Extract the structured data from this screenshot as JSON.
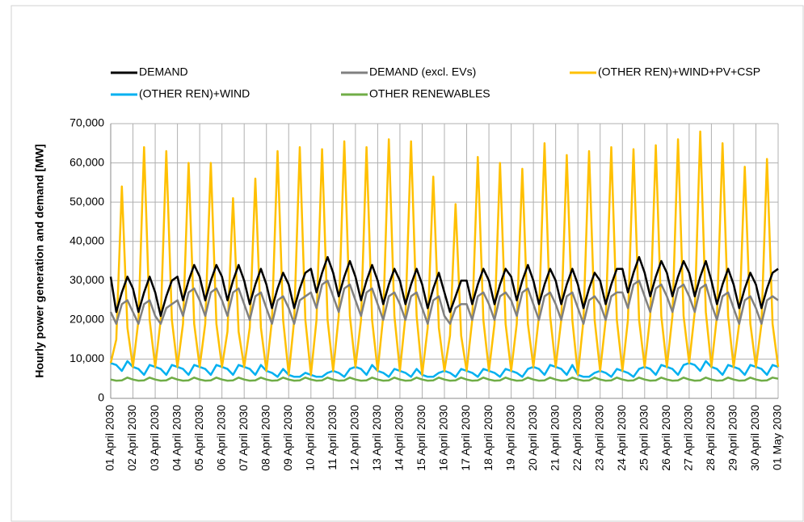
{
  "chart_data": {
    "type": "line",
    "y_label": "Hourly power generation and demand [MW]",
    "xlim": [
      0,
      30
    ],
    "xticks": [
      {
        "value": 0,
        "label": "01 April 2030"
      },
      {
        "value": 1,
        "label": "02 April 2030"
      },
      {
        "value": 2,
        "label": "03 April 2030"
      },
      {
        "value": 3,
        "label": "04 April 2030"
      },
      {
        "value": 4,
        "label": "05 April 2030"
      },
      {
        "value": 5,
        "label": "06 April 2030"
      },
      {
        "value": 6,
        "label": "07 April 2030"
      },
      {
        "value": 7,
        "label": "08 April 2030"
      },
      {
        "value": 8,
        "label": "09 April 2030"
      },
      {
        "value": 9,
        "label": "10 April 2030"
      },
      {
        "value": 10,
        "label": "11 April 2030"
      },
      {
        "value": 11,
        "label": "12 April 2030"
      },
      {
        "value": 12,
        "label": "13 April 2030"
      },
      {
        "value": 13,
        "label": "14 April 2030"
      },
      {
        "value": 14,
        "label": "15 April 2030"
      },
      {
        "value": 15,
        "label": "16 April 2030"
      },
      {
        "value": 16,
        "label": "17 April 2030"
      },
      {
        "value": 17,
        "label": "18 April 2030"
      },
      {
        "value": 18,
        "label": "19 April 2030"
      },
      {
        "value": 19,
        "label": "20 April 2030"
      },
      {
        "value": 20,
        "label": "21 April 2030"
      },
      {
        "value": 21,
        "label": "22 April 2030"
      },
      {
        "value": 22,
        "label": "23 April 2030"
      },
      {
        "value": 23,
        "label": "24 April 2030"
      },
      {
        "value": 24,
        "label": "25 April 2030"
      },
      {
        "value": 25,
        "label": "26 April 2030"
      },
      {
        "value": 26,
        "label": "27 April 2030"
      },
      {
        "value": 27,
        "label": "28 April 2030"
      },
      {
        "value": 28,
        "label": "29 April 2030"
      },
      {
        "value": 29,
        "label": "30 April 2030"
      },
      {
        "value": 30,
        "label": "01 May 2030"
      }
    ],
    "ylim": [
      0,
      70000
    ],
    "yticks": [
      0,
      {
        "value": 10000,
        "label": "10,000"
      },
      {
        "value": 20000,
        "label": "20,000"
      },
      {
        "value": 30000,
        "label": "30,000"
      },
      {
        "value": 40000,
        "label": "40,000"
      },
      {
        "value": 50000,
        "label": "50,000"
      },
      {
        "value": 60000,
        "label": "60,000"
      },
      {
        "value": 70000,
        "label": "70,000"
      }
    ],
    "grid": true,
    "x": [
      0,
      0.25,
      0.5,
      0.75,
      1,
      1.25,
      1.5,
      1.75,
      2,
      2.25,
      2.5,
      2.75,
      3,
      3.25,
      3.5,
      3.75,
      4,
      4.25,
      4.5,
      4.75,
      5,
      5.25,
      5.5,
      5.75,
      6,
      6.25,
      6.5,
      6.75,
      7,
      7.25,
      7.5,
      7.75,
      8,
      8.25,
      8.5,
      8.75,
      9,
      9.25,
      9.5,
      9.75,
      10,
      10.25,
      10.5,
      10.75,
      11,
      11.25,
      11.5,
      11.75,
      12,
      12.25,
      12.5,
      12.75,
      13,
      13.25,
      13.5,
      13.75,
      14,
      14.25,
      14.5,
      14.75,
      15,
      15.25,
      15.5,
      15.75,
      16,
      16.25,
      16.5,
      16.75,
      17,
      17.25,
      17.5,
      17.75,
      18,
      18.25,
      18.5,
      18.75,
      19,
      19.25,
      19.5,
      19.75,
      20,
      20.25,
      20.5,
      20.75,
      21,
      21.25,
      21.5,
      21.75,
      22,
      22.25,
      22.5,
      22.75,
      23,
      23.25,
      23.5,
      23.75,
      24,
      24.25,
      24.5,
      24.75,
      25,
      25.25,
      25.5,
      25.75,
      26,
      26.25,
      26.5,
      26.75,
      27,
      27.25,
      27.5,
      27.75,
      28,
      28.25,
      28.5,
      28.75,
      29,
      29.25,
      29.5,
      29.75,
      30
    ],
    "series": [
      {
        "name": "DEMAND",
        "color": "#000000",
        "values": [
          31000,
          22000,
          27000,
          31000,
          28000,
          22000,
          27000,
          31000,
          27000,
          21000,
          26000,
          30000,
          31000,
          25000,
          30000,
          34000,
          31000,
          25000,
          30000,
          34000,
          31000,
          25000,
          30000,
          34000,
          30000,
          24000,
          29000,
          33000,
          29000,
          23000,
          28000,
          32000,
          29000,
          23000,
          28000,
          32000,
          33000,
          27000,
          32000,
          36000,
          32000,
          26000,
          31000,
          35000,
          31000,
          25000,
          30000,
          34000,
          30000,
          24000,
          29000,
          33000,
          30000,
          24000,
          29000,
          33000,
          29000,
          23000,
          28000,
          32000,
          27000,
          22000,
          26000,
          30000,
          30000,
          24000,
          29000,
          33000,
          30000,
          24000,
          29000,
          33000,
          31000,
          25000,
          30000,
          34000,
          30000,
          24000,
          29000,
          33000,
          30000,
          24000,
          29000,
          33000,
          29000,
          23000,
          28000,
          32000,
          30000,
          24000,
          29000,
          33000,
          33000,
          27000,
          32000,
          36000,
          32000,
          26000,
          31000,
          35000,
          32000,
          26000,
          31000,
          35000,
          32000,
          26000,
          31000,
          35000,
          30000,
          24000,
          29000,
          33000,
          29000,
          23000,
          28000,
          32000,
          29000,
          23000,
          28000,
          32000,
          33000
        ]
      },
      {
        "name": "DEMAND (excl. EVs)",
        "color": "#808080",
        "values": [
          22000,
          19000,
          24000,
          25000,
          22000,
          19000,
          24000,
          25000,
          21000,
          19000,
          23000,
          24000,
          25000,
          21000,
          27000,
          28000,
          25000,
          21000,
          27000,
          28000,
          25000,
          21000,
          27000,
          28000,
          24000,
          20000,
          26000,
          27000,
          23000,
          19000,
          25000,
          26000,
          23000,
          19000,
          25000,
          26000,
          27000,
          23000,
          29000,
          30000,
          26000,
          22000,
          28000,
          29000,
          25000,
          21000,
          27000,
          28000,
          24000,
          20000,
          26000,
          27000,
          24000,
          20000,
          26000,
          27000,
          23000,
          19000,
          25000,
          26000,
          21000,
          19000,
          23000,
          24000,
          24000,
          20000,
          26000,
          27000,
          24000,
          20000,
          26000,
          27000,
          25000,
          21000,
          27000,
          28000,
          24000,
          20000,
          26000,
          27000,
          24000,
          20000,
          26000,
          27000,
          23000,
          19000,
          25000,
          26000,
          24000,
          20000,
          26000,
          27000,
          27000,
          23000,
          29000,
          30000,
          26000,
          22000,
          28000,
          29000,
          26000,
          22000,
          28000,
          29000,
          26000,
          22000,
          28000,
          29000,
          24000,
          20000,
          26000,
          27000,
          23000,
          19000,
          25000,
          26000,
          23000,
          19000,
          25000,
          26000,
          25000
        ]
      },
      {
        "name": "(OTHER REN)+WIND+PV+CSP",
        "color": "#ffc000",
        "values": [
          9000,
          15000,
          54000,
          18000,
          8000,
          20000,
          64000,
          20000,
          8000,
          20000,
          63000,
          20000,
          8000,
          19000,
          60000,
          19000,
          8000,
          19000,
          60000,
          19000,
          8000,
          17000,
          51000,
          17000,
          8000,
          18000,
          56000,
          18000,
          7000,
          20000,
          63000,
          20000,
          6000,
          20000,
          64000,
          20000,
          6000,
          20000,
          63500,
          20000,
          7000,
          21000,
          65500,
          21000,
          8000,
          20000,
          64000,
          20000,
          7000,
          21000,
          66000,
          21000,
          7000,
          21000,
          65500,
          21000,
          6000,
          18000,
          56500,
          18000,
          7000,
          16000,
          49500,
          16000,
          7000,
          20000,
          61500,
          20000,
          7000,
          19000,
          60000,
          19000,
          7000,
          19000,
          58500,
          19000,
          8000,
          21000,
          65000,
          21000,
          8000,
          20000,
          62000,
          20000,
          6000,
          20000,
          63000,
          20000,
          7000,
          20000,
          64000,
          20000,
          7000,
          20000,
          63500,
          20000,
          8000,
          21000,
          64500,
          21000,
          8000,
          21000,
          66000,
          21000,
          9000,
          22000,
          68000,
          22000,
          8000,
          21000,
          65000,
          21000,
          8000,
          19000,
          59000,
          19000,
          8000,
          19000,
          61000,
          19000,
          8000
        ]
      },
      {
        "name": "(OTHER REN)+WIND",
        "color": "#00b0f0",
        "values": [
          9000,
          8500,
          7000,
          9500,
          8000,
          7500,
          6000,
          8500,
          8000,
          7500,
          6000,
          8500,
          8000,
          7500,
          6000,
          8500,
          8000,
          7500,
          6000,
          8500,
          8000,
          7500,
          6000,
          8500,
          8000,
          7500,
          6000,
          8500,
          7000,
          6500,
          5500,
          7500,
          6000,
          5500,
          5500,
          6500,
          6000,
          5500,
          5500,
          6500,
          7000,
          6500,
          5500,
          7500,
          8000,
          7500,
          6000,
          8500,
          7000,
          6500,
          5500,
          7500,
          7000,
          6500,
          5500,
          7500,
          6000,
          5500,
          5500,
          6500,
          7000,
          6500,
          5500,
          7500,
          7000,
          6500,
          5500,
          7500,
          7000,
          6500,
          5500,
          7500,
          7000,
          6500,
          5500,
          7500,
          8000,
          7500,
          6000,
          8500,
          8000,
          7500,
          6000,
          8500,
          6000,
          5500,
          5500,
          6500,
          7000,
          6500,
          5500,
          7500,
          7000,
          6500,
          5500,
          7500,
          8000,
          7500,
          6000,
          8500,
          8000,
          7500,
          6000,
          8500,
          9000,
          8500,
          7000,
          9500,
          8000,
          7500,
          6000,
          8500,
          8000,
          7500,
          6000,
          8500,
          8000,
          7500,
          6000,
          8500,
          8000
        ]
      },
      {
        "name": "OTHER RENEWABLES",
        "color": "#70ad47",
        "values": [
          4800,
          4500,
          4600,
          5300,
          4800,
          4500,
          4600,
          5300,
          4800,
          4500,
          4600,
          5300,
          4800,
          4500,
          4600,
          5300,
          4800,
          4500,
          4600,
          5300,
          4800,
          4500,
          4600,
          5300,
          4800,
          4500,
          4600,
          5300,
          4800,
          4500,
          4600,
          5300,
          4800,
          4500,
          4600,
          5300,
          4800,
          4500,
          4600,
          5300,
          4800,
          4500,
          4600,
          5300,
          4800,
          4500,
          4600,
          5300,
          4800,
          4500,
          4600,
          5300,
          4800,
          4500,
          4600,
          5300,
          4800,
          4500,
          4600,
          5300,
          4800,
          4500,
          4600,
          5300,
          4800,
          4500,
          4600,
          5300,
          4800,
          4500,
          4600,
          5300,
          4800,
          4500,
          4600,
          5300,
          4800,
          4500,
          4600,
          5300,
          4800,
          4500,
          4600,
          5300,
          4800,
          4500,
          4600,
          5300,
          4800,
          4500,
          4600,
          5300,
          4800,
          4500,
          4600,
          5300,
          4800,
          4500,
          4600,
          5300,
          4800,
          4500,
          4600,
          5300,
          4800,
          4500,
          4600,
          5300,
          4800,
          4500,
          4600,
          5300,
          4800,
          4500,
          4600,
          5300,
          4800,
          4500,
          4600,
          5300,
          5000
        ]
      }
    ]
  }
}
